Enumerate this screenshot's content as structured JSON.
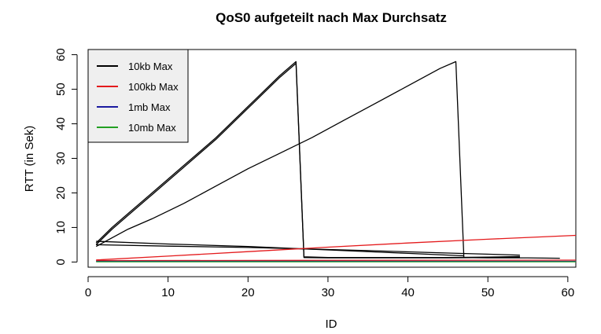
{
  "chart_data": {
    "type": "line",
    "title": "QoS0 aufgeteilt nach Max Durchsatz",
    "xlabel": "ID",
    "ylabel": "RTT (in Sek)",
    "xlim": [
      0,
      61
    ],
    "ylim": [
      -1.5,
      61.5
    ],
    "x_ticks": [
      0,
      10,
      20,
      30,
      40,
      50,
      60
    ],
    "y_ticks": [
      0,
      10,
      20,
      30,
      40,
      50,
      60
    ],
    "grid": false,
    "legend_position": "top-left",
    "series": [
      {
        "name": "10kb Max",
        "color": "#000000",
        "segments": [
          {
            "x": [
              1,
              3,
              5,
              8,
              12,
              16,
              20,
              24,
              26,
              27,
              30,
              35,
              40,
              45,
              50,
              54
            ],
            "y": [
              5.5,
              10,
              14,
              20,
              28,
              36,
              45,
              54,
              58,
              1.5,
              1.3,
              1.3,
              1.3,
              1.3,
              1.4,
              1.6
            ]
          },
          {
            "x": [
              1,
              3,
              5,
              8,
              12,
              16,
              20,
              24,
              26,
              27,
              30,
              35,
              40,
              45,
              50,
              54
            ],
            "y": [
              5.0,
              9.5,
              13.5,
              19.5,
              27.5,
              35.5,
              44.5,
              53.5,
              57.5,
              1.3,
              1.2,
              1.2,
              1.2,
              1.2,
              1.3,
              1.5
            ]
          },
          {
            "x": [
              1,
              10,
              20,
              27,
              35,
              45,
              54
            ],
            "y": [
              5.0,
              4.6,
              4.2,
              3.8,
              3.3,
              2.6,
              2.0
            ]
          },
          {
            "x": [
              1,
              3,
              5,
              8,
              12,
              16,
              20,
              24,
              28,
              32,
              36,
              40,
              44,
              46,
              47,
              50,
              55,
              59
            ],
            "y": [
              4.5,
              7,
              9.5,
              12.5,
              17,
              22,
              27,
              31.5,
              36,
              41,
              46,
              51,
              56,
              58,
              1.3,
              1.2,
              1.2,
              1.1
            ]
          },
          {
            "x": [
              1,
              10,
              20,
              30,
              40,
              47
            ],
            "y": [
              6.0,
              5.2,
              4.5,
              3.5,
              2.5,
              1.8
            ]
          }
        ]
      },
      {
        "name": "100kb Max",
        "color": "#e41a1c",
        "segments": [
          {
            "x": [
              1,
              10,
              20,
              30,
              40,
              50,
              61
            ],
            "y": [
              0.6,
              1.7,
              3.0,
              4.3,
              5.5,
              6.6,
              7.7
            ]
          },
          {
            "x": [
              1,
              20,
              40,
              61
            ],
            "y": [
              0.4,
              0.45,
              0.5,
              0.55
            ]
          }
        ]
      },
      {
        "name": "1mb Max",
        "color": "#1a1aa0",
        "segments": [
          {
            "x": [
              1,
              61
            ],
            "y": [
              0.2,
              0.2
            ]
          }
        ]
      },
      {
        "name": "10mb Max",
        "color": "#22a022",
        "segments": [
          {
            "x": [
              1,
              61
            ],
            "y": [
              0.08,
              0.08
            ]
          }
        ]
      }
    ]
  }
}
